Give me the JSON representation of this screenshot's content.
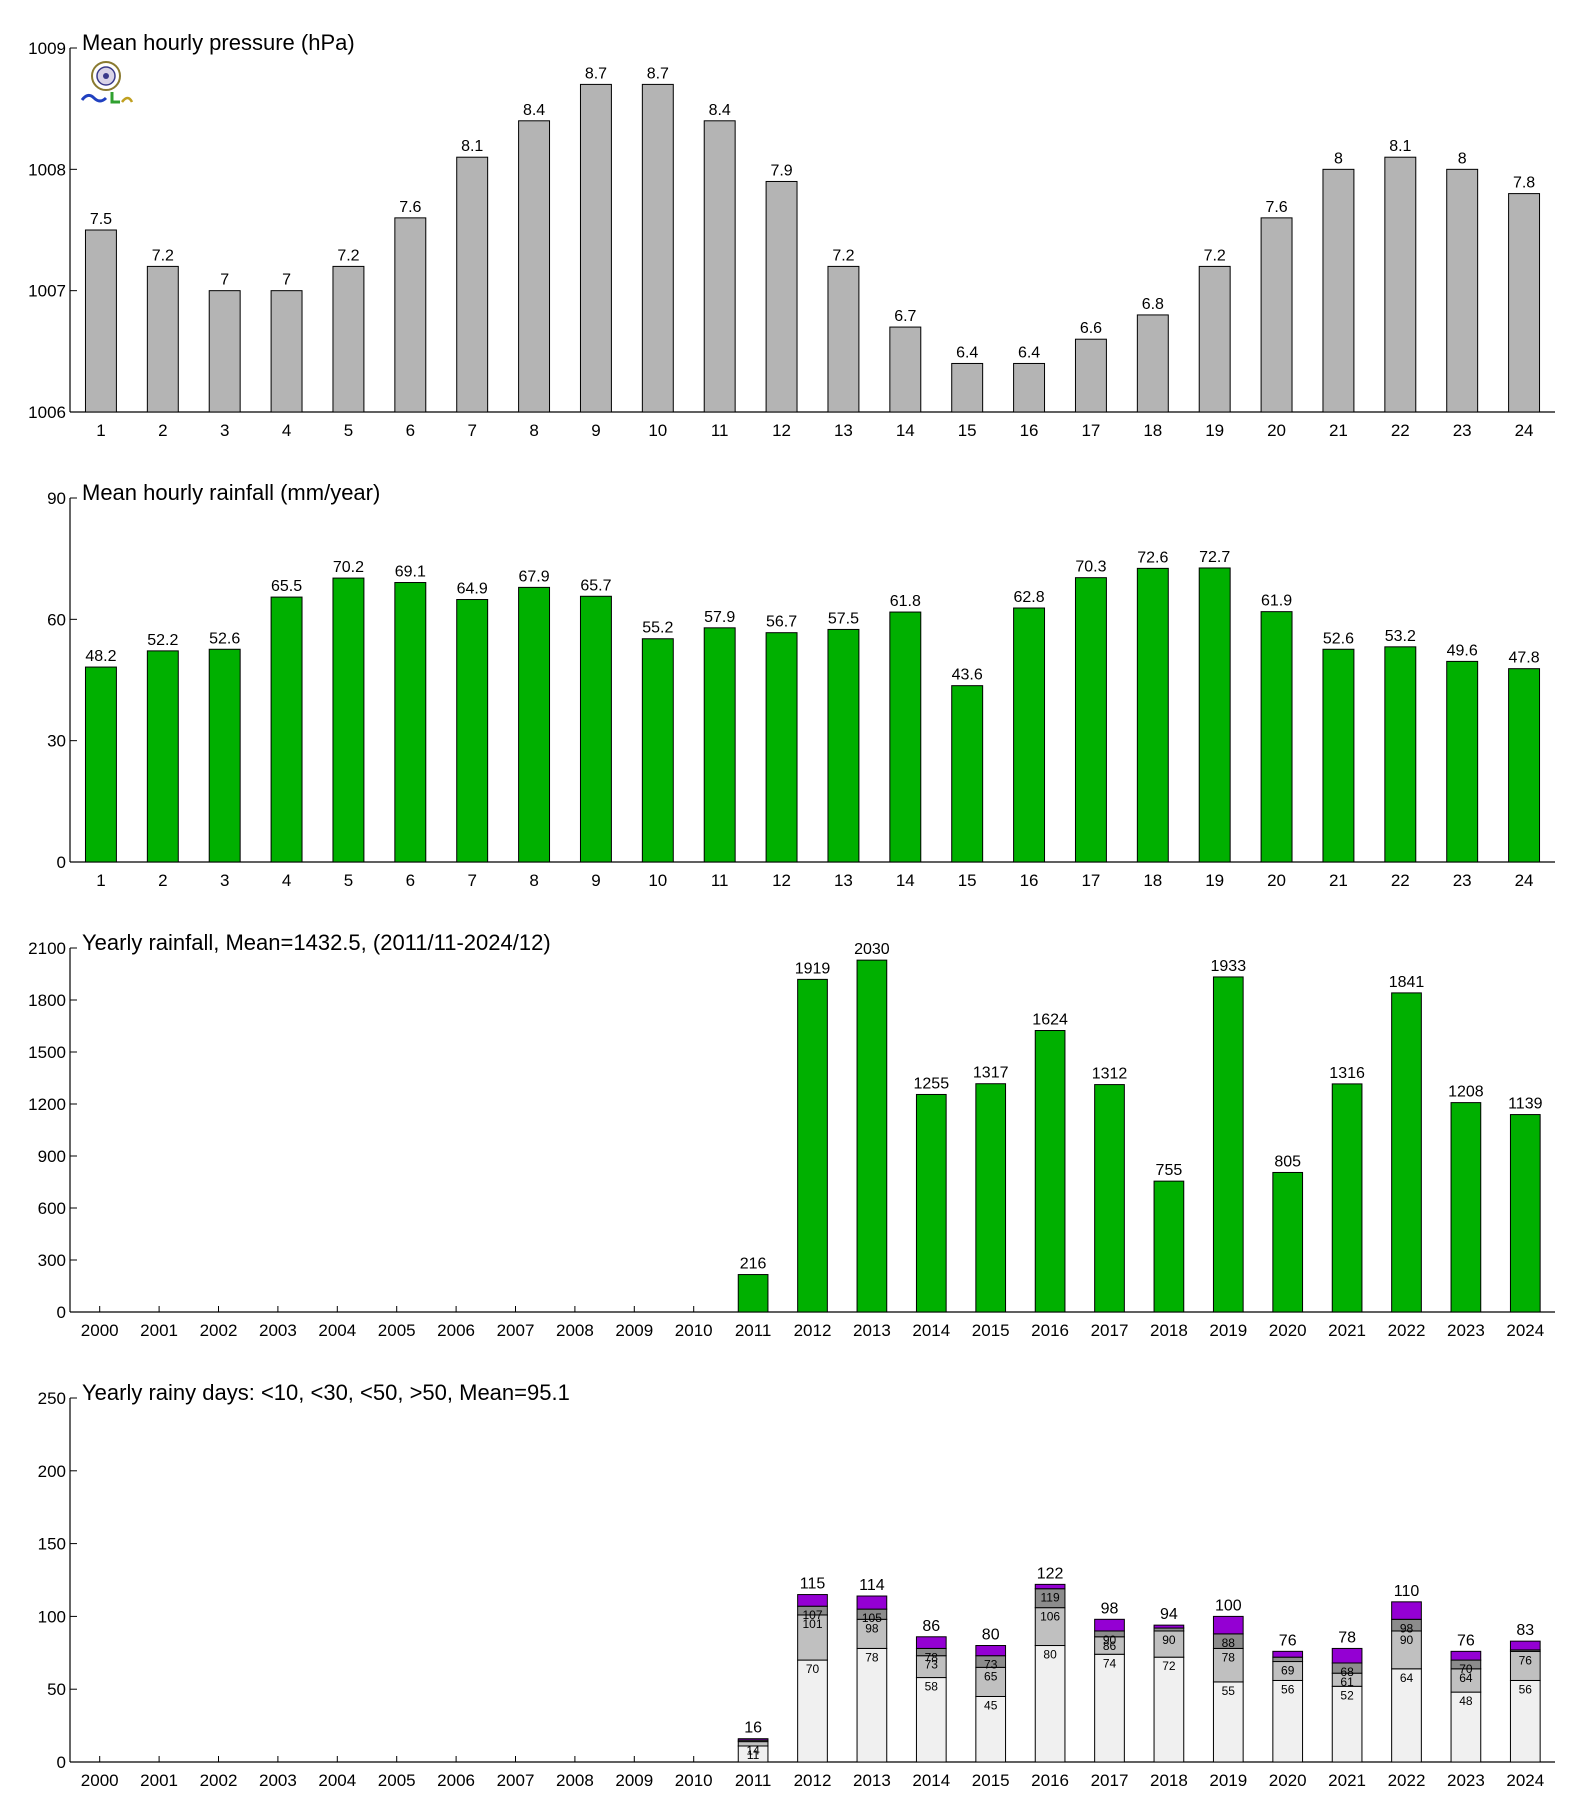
{
  "chart_data": [
    {
      "type": "bar",
      "title": "Mean hourly pressure (hPa)",
      "xlabel": "",
      "ylabel": "",
      "ylim": [
        1006,
        1009
      ],
      "yticks": [
        "1006",
        "1007",
        "1008",
        "1009"
      ],
      "categories": [
        "1",
        "2",
        "3",
        "4",
        "5",
        "6",
        "7",
        "8",
        "9",
        "10",
        "11",
        "12",
        "13",
        "14",
        "15",
        "16",
        "17",
        "18",
        "19",
        "20",
        "21",
        "22",
        "23",
        "24"
      ],
      "values": [
        1007.5,
        1007.2,
        1007.0,
        1007.0,
        1007.2,
        1007.6,
        1008.1,
        1008.4,
        1008.7,
        1008.7,
        1008.4,
        1007.9,
        1007.2,
        1006.7,
        1006.4,
        1006.4,
        1006.6,
        1006.8,
        1007.2,
        1007.6,
        1008.0,
        1008.1,
        1008.0,
        1007.8
      ],
      "labels": [
        "7.5",
        "7.2",
        "7",
        "7",
        "7.2",
        "7.6",
        "8.1",
        "8.4",
        "8.7",
        "8.7",
        "8.4",
        "7.9",
        "7.2",
        "6.7",
        "6.4",
        "6.4",
        "6.6",
        "6.8",
        "7.2",
        "7.6",
        "8",
        "8.1",
        "8",
        "7.8"
      ],
      "color": "#b4b4b4",
      "grid": false
    },
    {
      "type": "bar",
      "title": "Mean hourly rainfall (mm/year)",
      "xlabel": "",
      "ylabel": "",
      "ylim": [
        0,
        90
      ],
      "yticks": [
        "0",
        "30",
        "60",
        "90"
      ],
      "categories": [
        "1",
        "2",
        "3",
        "4",
        "5",
        "6",
        "7",
        "8",
        "9",
        "10",
        "11",
        "12",
        "13",
        "14",
        "15",
        "16",
        "17",
        "18",
        "19",
        "20",
        "21",
        "22",
        "23",
        "24"
      ],
      "values": [
        48.2,
        52.2,
        52.6,
        65.5,
        70.2,
        69.1,
        64.9,
        67.9,
        65.7,
        55.2,
        57.9,
        56.7,
        57.5,
        61.8,
        43.6,
        62.8,
        70.3,
        72.6,
        72.7,
        61.9,
        52.6,
        53.2,
        49.6,
        47.8
      ],
      "labels": [
        "48.2",
        "52.2",
        "52.6",
        "65.5",
        "70.2",
        "69.1",
        "64.9",
        "67.9",
        "65.7",
        "55.2",
        "57.9",
        "56.7",
        "57.5",
        "61.8",
        "43.6",
        "62.8",
        "70.3",
        "72.6",
        "72.7",
        "61.9",
        "52.6",
        "53.2",
        "49.6",
        "47.8"
      ],
      "color": "#00b000",
      "grid": false
    },
    {
      "type": "bar",
      "title": "Yearly rainfall, Mean=1432.5, (2011/11-2024/12)",
      "xlabel": "",
      "ylabel": "",
      "ylim": [
        0,
        2100
      ],
      "yticks": [
        "0",
        "300",
        "600",
        "900",
        "1200",
        "1500",
        "1800",
        "2100"
      ],
      "categories": [
        "2000",
        "2001",
        "2002",
        "2003",
        "2004",
        "2005",
        "2006",
        "2007",
        "2008",
        "2009",
        "2010",
        "2011",
        "2012",
        "2013",
        "2014",
        "2015",
        "2016",
        "2017",
        "2018",
        "2019",
        "2020",
        "2021",
        "2022",
        "2023",
        "2024"
      ],
      "values": [
        null,
        null,
        null,
        null,
        null,
        null,
        null,
        null,
        null,
        null,
        null,
        216,
        1919,
        2030,
        1255,
        1317,
        1624,
        1312,
        755,
        1933,
        805,
        1316,
        1841,
        1208,
        1139
      ],
      "labels": [
        "",
        "",
        "",
        "",
        "",
        "",
        "",
        "",
        "",
        "",
        "",
        "216",
        "1919",
        "2030",
        "1255",
        "1317",
        "1624",
        "1312",
        "755",
        "1933",
        "805",
        "1316",
        "1841",
        "1208",
        "1139"
      ],
      "color": "#00b000",
      "grid": false
    },
    {
      "type": "bar",
      "stacked": true,
      "title": "Yearly rainy days: <10, <30, <50, >50, Mean=95.1",
      "xlabel": "",
      "ylabel": "",
      "ylim": [
        0,
        250
      ],
      "yticks": [
        "0",
        "50",
        "100",
        "150",
        "200",
        "250"
      ],
      "categories": [
        "2000",
        "2001",
        "2002",
        "2003",
        "2004",
        "2005",
        "2006",
        "2007",
        "2008",
        "2009",
        "2010",
        "2011",
        "2012",
        "2013",
        "2014",
        "2015",
        "2016",
        "2017",
        "2018",
        "2019",
        "2020",
        "2021",
        "2022",
        "2023",
        "2024"
      ],
      "cumulative": [
        null,
        null,
        null,
        null,
        null,
        null,
        null,
        null,
        null,
        null,
        null,
        [
          11,
          14,
          15,
          16
        ],
        [
          70,
          101,
          107,
          115
        ],
        [
          78,
          98,
          105,
          114
        ],
        [
          58,
          73,
          78,
          86
        ],
        [
          45,
          65,
          73,
          80
        ],
        [
          80,
          106,
          119,
          122
        ],
        [
          74,
          86,
          90,
          98
        ],
        [
          72,
          90,
          92,
          94
        ],
        [
          55,
          78,
          88,
          100
        ],
        [
          56,
          69,
          72,
          76
        ],
        [
          52,
          61,
          68,
          78
        ],
        [
          64,
          90,
          98,
          110
        ],
        [
          48,
          64,
          70,
          76
        ],
        [
          56,
          76,
          77,
          83
        ]
      ],
      "series": [
        {
          "name": "<10",
          "color": "#f0f0f0"
        },
        {
          "name": "<30",
          "color": "#c0c0c0"
        },
        {
          "name": "<50",
          "color": "#8c8c8c"
        },
        {
          "name": ">50",
          "color": "#9400d3"
        }
      ],
      "segment_labels": [
        null,
        null,
        null,
        null,
        null,
        null,
        null,
        null,
        null,
        null,
        null,
        [
          "11",
          "14",
          "",
          ""
        ],
        [
          "70",
          "101",
          "107",
          ""
        ],
        [
          "78",
          "98",
          "105",
          ""
        ],
        [
          "58",
          "73",
          "78",
          ""
        ],
        [
          "45",
          "65",
          "73",
          ""
        ],
        [
          "80",
          "106",
          "119",
          ""
        ],
        [
          "74",
          "86",
          "90",
          ""
        ],
        [
          "72",
          "90",
          "",
          ""
        ],
        [
          "55",
          "78",
          "88",
          ""
        ],
        [
          "56",
          "69",
          "",
          ""
        ],
        [
          "52",
          "61",
          "68",
          ""
        ],
        [
          "64",
          "90",
          "98",
          ""
        ],
        [
          "48",
          "64",
          "70",
          ""
        ],
        [
          "56",
          "76",
          "",
          ""
        ]
      ],
      "labels": [
        "",
        "",
        "",
        "",
        "",
        "",
        "",
        "",
        "",
        "",
        "",
        "16",
        "115",
        "114",
        "86",
        "80",
        "122",
        "98",
        "94",
        "100",
        "76",
        "78",
        "110",
        "76",
        "83"
      ],
      "grid": false
    }
  ]
}
